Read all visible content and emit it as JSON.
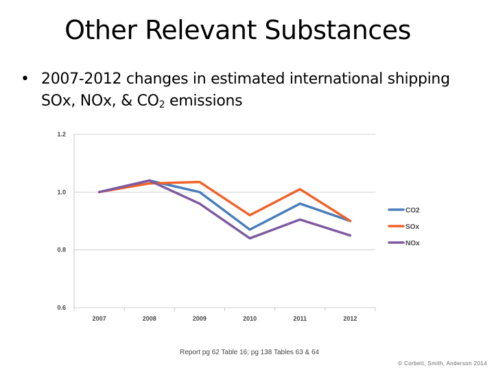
{
  "slide": {
    "title": "Other Relevant Substances",
    "bullet_symbol": "•",
    "bullet_text_1": "2007-2012 changes in estimated international shipping SOx, NOx, & CO",
    "bullet_subscript": "2",
    "bullet_text_2": " emissions",
    "caption": "Report pg 62 Table 16; pg 138 Tables 63 & 64",
    "credit": "© Corbett, Smith, Anderson 2014"
  },
  "chart_data": {
    "type": "line",
    "title": "",
    "xlabel": "",
    "ylabel": "",
    "categories": [
      "2007",
      "2008",
      "2009",
      "2010",
      "2011",
      "2012"
    ],
    "ylim": [
      0.6,
      1.2
    ],
    "yticks": [
      "1.2",
      "1.0",
      "0.8",
      "0.6"
    ],
    "ytick_values": [
      1.2,
      1.0,
      0.8,
      0.6
    ],
    "grid": true,
    "legend": "right",
    "series": [
      {
        "name": "CO2",
        "color": "#4a7ebb",
        "values": [
          1.0,
          1.04,
          1.0,
          0.87,
          0.96,
          0.9
        ]
      },
      {
        "name": "SOx",
        "color": "#f0622a",
        "values": [
          1.0,
          1.03,
          1.035,
          0.92,
          1.01,
          0.9
        ]
      },
      {
        "name": "NOx",
        "color": "#7e5aa0",
        "values": [
          1.0,
          1.04,
          0.96,
          0.84,
          0.905,
          0.85
        ]
      }
    ]
  }
}
